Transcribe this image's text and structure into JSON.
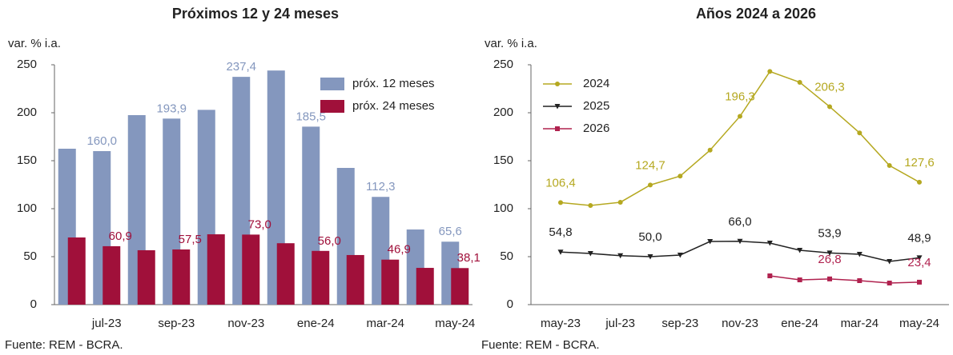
{
  "chart_data": [
    {
      "type": "bar",
      "title": "Próximos 12 y 24 meses",
      "y_label": "var. % i.a.",
      "source": "Fuente: REM - BCRA.",
      "categories": [
        null,
        "jul-23",
        null,
        "sep-23",
        null,
        "nov-23",
        null,
        "ene-24",
        null,
        "mar-24",
        null,
        "may-24"
      ],
      "series": [
        {
          "name": "próx. 12 meses",
          "color": "#8497be",
          "values": [
            162.5,
            160.0,
            197.5,
            193.9,
            203,
            237.4,
            244,
            185.5,
            142.5,
            112.3,
            78.3,
            65.6
          ],
          "value_labels": [
            null,
            "160,0",
            null,
            "193,9",
            null,
            "237,4",
            null,
            "185,5",
            null,
            "112,3",
            null,
            "65,6"
          ]
        },
        {
          "name": "próx. 24 meses",
          "color": "#a0103a",
          "values": [
            70,
            60.9,
            56.7,
            57.5,
            73.3,
            73.0,
            64,
            56.0,
            51.7,
            46.9,
            38.3,
            38.1
          ],
          "value_labels": [
            null,
            "60,9",
            null,
            "57,5",
            null,
            "73,0",
            null,
            "56,0",
            null,
            "46,9",
            null,
            "38,1"
          ]
        }
      ],
      "ylim": [
        0,
        250
      ],
      "yticks": [
        0,
        50,
        100,
        150,
        200,
        250
      ],
      "grid": false,
      "legend_position": "upper right"
    },
    {
      "type": "line",
      "title": "Años 2024 a 2026",
      "y_label": "var. % i.a.",
      "source": "Fuente: REM - BCRA.",
      "categories": [
        "may-23",
        null,
        "jul-23",
        null,
        "sep-23",
        null,
        "nov-23",
        null,
        "ene-24",
        null,
        "mar-24",
        null,
        "may-24"
      ],
      "series": [
        {
          "name": "2024",
          "color": "#b5a820",
          "marker": "circle",
          "values": [
            106.4,
            103.3,
            106.7,
            124.7,
            134,
            161,
            196.3,
            243,
            231.7,
            206.3,
            179,
            145,
            127.6
          ],
          "value_labels": [
            "106,4",
            null,
            null,
            "124,7",
            null,
            null,
            "196,3",
            null,
            null,
            "206,3",
            null,
            null,
            "127,6"
          ]
        },
        {
          "name": "2025",
          "color": "#222222",
          "marker": "triangle",
          "values": [
            54.8,
            53.3,
            51,
            50.0,
            51.7,
            65.8,
            66.0,
            64.2,
            56.7,
            53.9,
            52.5,
            45,
            48.9
          ],
          "value_labels": [
            "54,8",
            null,
            null,
            "50,0",
            null,
            null,
            "66,0",
            null,
            null,
            "53,9",
            null,
            null,
            "48,9"
          ]
        },
        {
          "name": "2026",
          "color": "#b0224f",
          "marker": "square",
          "values": [
            null,
            null,
            null,
            null,
            null,
            null,
            null,
            30,
            25.8,
            26.8,
            25,
            22.5,
            23.4
          ],
          "value_labels": [
            null,
            null,
            null,
            null,
            null,
            null,
            null,
            null,
            null,
            "26,8",
            null,
            null,
            "23,4"
          ]
        }
      ],
      "ylim": [
        0,
        250
      ],
      "yticks": [
        0,
        50,
        100,
        150,
        200,
        250
      ],
      "grid": false,
      "legend_position": "upper left"
    }
  ]
}
